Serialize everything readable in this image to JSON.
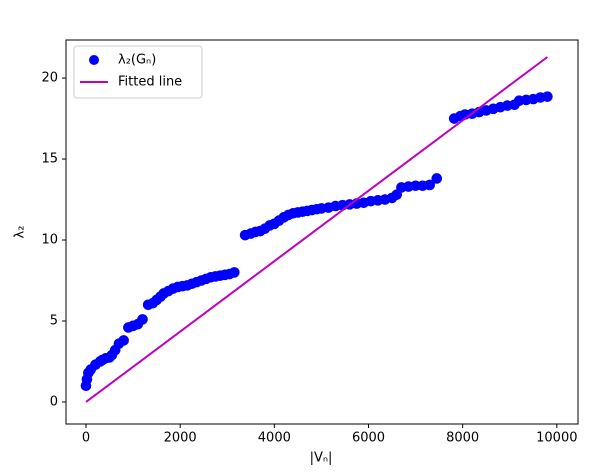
{
  "chart_data": {
    "type": "scatter",
    "xlabel": "|Vₙ|",
    "ylabel": "λ₂",
    "xlim": [
      -425,
      10450
    ],
    "ylim": [
      -1.36,
      22.35
    ],
    "xticks": [
      0,
      2000,
      4000,
      6000,
      8000,
      10000
    ],
    "yticks": [
      0,
      5,
      10,
      15,
      20
    ],
    "legend": "upper left",
    "series": [
      {
        "name": "λ₂(Gₙ)",
        "type": "scatter",
        "color": "#0000ff",
        "x": [
          0,
          20,
          50,
          100,
          200,
          300,
          350,
          420,
          500,
          550,
          620,
          700,
          800,
          900,
          1000,
          1100,
          1200,
          1320,
          1420,
          1500,
          1580,
          1650,
          1750,
          1850,
          1950,
          2050,
          2150,
          2250,
          2350,
          2450,
          2550,
          2650,
          2750,
          2850,
          2950,
          3050,
          3150,
          3380,
          3500,
          3600,
          3700,
          3800,
          3900,
          4000,
          4100,
          4200,
          4300,
          4400,
          4500,
          4600,
          4700,
          4800,
          4900,
          5000,
          5150,
          5300,
          5450,
          5600,
          5750,
          5900,
          6050,
          6200,
          6350,
          6500,
          6600,
          6700,
          6850,
          7000,
          7150,
          7300,
          7450,
          7820,
          7950,
          8050,
          8200,
          8350,
          8500,
          8650,
          8800,
          8950,
          9100,
          9200,
          9350,
          9500,
          9650,
          9800
        ],
        "values": [
          1.0,
          1.4,
          1.8,
          2.0,
          2.3,
          2.5,
          2.6,
          2.7,
          2.75,
          2.9,
          3.2,
          3.6,
          3.8,
          4.6,
          4.7,
          4.8,
          5.1,
          6.0,
          6.1,
          6.3,
          6.5,
          6.7,
          6.85,
          7.0,
          7.1,
          7.15,
          7.2,
          7.3,
          7.4,
          7.5,
          7.6,
          7.7,
          7.75,
          7.8,
          7.85,
          7.9,
          8.0,
          10.3,
          10.4,
          10.5,
          10.55,
          10.7,
          10.9,
          11.0,
          11.2,
          11.4,
          11.55,
          11.65,
          11.7,
          11.75,
          11.8,
          11.85,
          11.9,
          11.95,
          12.0,
          12.1,
          12.15,
          12.2,
          12.25,
          12.3,
          12.4,
          12.45,
          12.5,
          12.6,
          12.8,
          13.25,
          13.3,
          13.35,
          13.35,
          13.4,
          13.8,
          17.5,
          17.65,
          17.75,
          17.8,
          17.9,
          18.0,
          18.1,
          18.2,
          18.3,
          18.35,
          18.6,
          18.65,
          18.7,
          18.8,
          18.85
        ]
      },
      {
        "name": "Fitted line",
        "type": "line",
        "color": "#bf00bf",
        "x": [
          0,
          9800
        ],
        "values": [
          0,
          21.3
        ]
      }
    ]
  }
}
